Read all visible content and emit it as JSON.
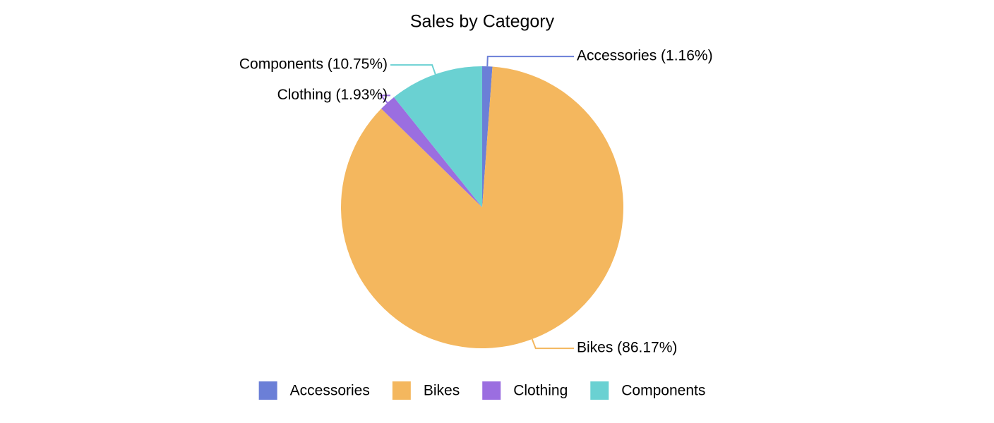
{
  "chart_data": {
    "type": "pie",
    "title": "Sales by Category",
    "categories": [
      "Accessories",
      "Bikes",
      "Clothing",
      "Components"
    ],
    "values": [
      1.16,
      86.17,
      1.93,
      10.75
    ],
    "value_labels": [
      "Accessories (1.16%)",
      "Bikes (86.17%)",
      "Clothing (1.93%)",
      "Components (10.75%)"
    ],
    "colors": [
      "#6b7fd7",
      "#f4b75e",
      "#9b6ee0",
      "#6ad1d2"
    ],
    "legend": "bottom"
  }
}
